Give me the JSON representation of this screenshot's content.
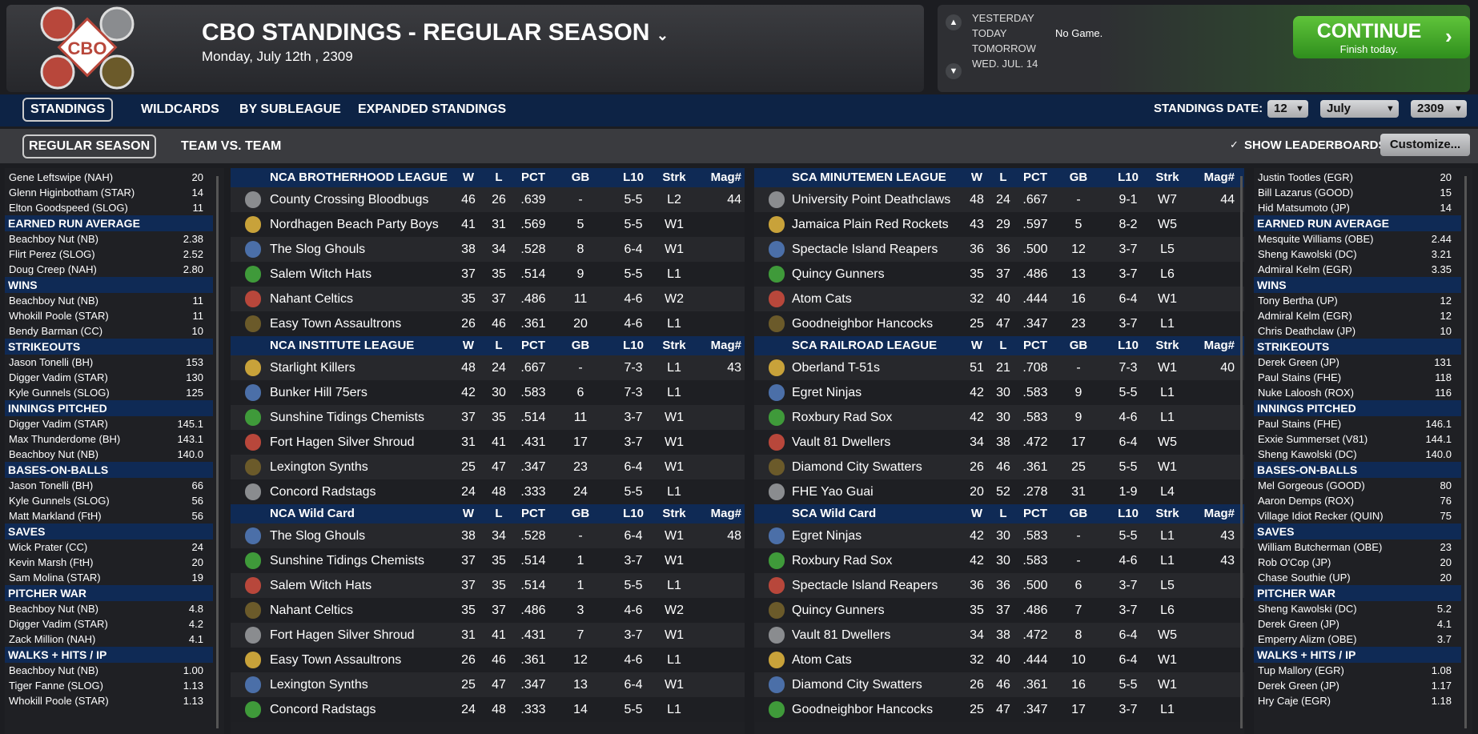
{
  "header": {
    "logo": "CBO",
    "title": "CBO STANDINGS - REGULAR SEASON",
    "date": "Monday, July 12th , 2309"
  },
  "schedule": {
    "days": [
      "YESTERDAY",
      "TODAY",
      "TOMORROW",
      "WED. JUL. 14"
    ],
    "today_result": "No Game."
  },
  "continue": {
    "label": "CONTINUE",
    "sub": "Finish today."
  },
  "tabs": [
    "STANDINGS",
    "WILDCARDS",
    "BY SUBLEAGUE",
    "EXPANDED STANDINGS"
  ],
  "standings_date": {
    "label": "STANDINGS DATE:",
    "day": "12",
    "month": "July",
    "year": "2309"
  },
  "subtabs": [
    "REGULAR SEASON",
    "TEAM VS. TEAM"
  ],
  "show_leaderboards": "SHOW LEADERBOARDS",
  "customize": "Customize...",
  "standings": {
    "columns": [
      "W",
      "L",
      "PCT",
      "GB",
      "L10",
      "Strk",
      "Mag#"
    ],
    "left": [
      {
        "league": "NCA BROTHERHOOD LEAGUE",
        "rows": [
          [
            "County Crossing Bloodbugs",
            46,
            26,
            ".639",
            "-",
            "5-5",
            "L2",
            44
          ],
          [
            "Nordhagen Beach Party Boys",
            41,
            31,
            ".569",
            5,
            "5-5",
            "W1",
            null
          ],
          [
            "The Slog Ghouls",
            38,
            34,
            ".528",
            8,
            "6-4",
            "W1",
            null
          ],
          [
            "Salem Witch Hats",
            37,
            35,
            ".514",
            9,
            "5-5",
            "L1",
            null
          ],
          [
            "Nahant Celtics",
            35,
            37,
            ".486",
            11,
            "4-6",
            "W2",
            null
          ],
          [
            "Easy Town Assaultrons",
            26,
            46,
            ".361",
            20,
            "4-6",
            "L1",
            null
          ]
        ]
      },
      {
        "league": "NCA INSTITUTE LEAGUE",
        "rows": [
          [
            "Starlight Killers",
            48,
            24,
            ".667",
            "-",
            "7-3",
            "L1",
            43
          ],
          [
            "Bunker Hill 75ers",
            42,
            30,
            ".583",
            6,
            "7-3",
            "L1",
            null
          ],
          [
            "Sunshine Tidings Chemists",
            37,
            35,
            ".514",
            11,
            "3-7",
            "W1",
            null
          ],
          [
            "Fort Hagen Silver Shroud",
            31,
            41,
            ".431",
            17,
            "3-7",
            "W1",
            null
          ],
          [
            "Lexington Synths",
            25,
            47,
            ".347",
            23,
            "6-4",
            "W1",
            null
          ],
          [
            "Concord Radstags",
            24,
            48,
            ".333",
            24,
            "5-5",
            "L1",
            null
          ]
        ]
      },
      {
        "league": "NCA  Wild Card",
        "rows": [
          [
            "The Slog Ghouls",
            38,
            34,
            ".528",
            "-",
            "6-4",
            "W1",
            48
          ],
          [
            "Sunshine Tidings Chemists",
            37,
            35,
            ".514",
            1,
            "3-7",
            "W1",
            null
          ],
          [
            "Salem Witch Hats",
            37,
            35,
            ".514",
            1,
            "5-5",
            "L1",
            null
          ],
          [
            "Nahant Celtics",
            35,
            37,
            ".486",
            3,
            "4-6",
            "W2",
            null
          ],
          [
            "Fort Hagen Silver Shroud",
            31,
            41,
            ".431",
            7,
            "3-7",
            "W1",
            null
          ],
          [
            "Easy Town Assaultrons",
            26,
            46,
            ".361",
            12,
            "4-6",
            "L1",
            null
          ],
          [
            "Lexington Synths",
            25,
            47,
            ".347",
            13,
            "6-4",
            "W1",
            null
          ],
          [
            "Concord Radstags",
            24,
            48,
            ".333",
            14,
            "5-5",
            "L1",
            null
          ]
        ]
      }
    ],
    "right": [
      {
        "league": "SCA MINUTEMEN LEAGUE",
        "rows": [
          [
            "University Point Deathclaws",
            48,
            24,
            ".667",
            "-",
            "9-1",
            "W7",
            44
          ],
          [
            "Jamaica Plain Red Rockets",
            43,
            29,
            ".597",
            5,
            "8-2",
            "W5",
            null
          ],
          [
            "Spectacle Island Reapers",
            36,
            36,
            ".500",
            12,
            "3-7",
            "L5",
            null
          ],
          [
            "Quincy Gunners",
            35,
            37,
            ".486",
            13,
            "3-7",
            "L6",
            null
          ],
          [
            "Atom Cats",
            32,
            40,
            ".444",
            16,
            "6-4",
            "W1",
            null
          ],
          [
            "Goodneighbor Hancocks",
            25,
            47,
            ".347",
            23,
            "3-7",
            "L1",
            null
          ]
        ]
      },
      {
        "league": "SCA RAILROAD LEAGUE",
        "rows": [
          [
            "Oberland T-51s",
            51,
            21,
            ".708",
            "-",
            "7-3",
            "W1",
            40
          ],
          [
            "Egret Ninjas",
            42,
            30,
            ".583",
            9,
            "5-5",
            "L1",
            null
          ],
          [
            "Roxbury Rad Sox",
            42,
            30,
            ".583",
            9,
            "4-6",
            "L1",
            null
          ],
          [
            "Vault 81 Dwellers",
            34,
            38,
            ".472",
            17,
            "6-4",
            "W5",
            null
          ],
          [
            "Diamond City Swatters",
            26,
            46,
            ".361",
            25,
            "5-5",
            "W1",
            null
          ],
          [
            "FHE Yao Guai",
            20,
            52,
            ".278",
            31,
            "1-9",
            "L4",
            null
          ]
        ]
      },
      {
        "league": "SCA  Wild Card",
        "rows": [
          [
            "Egret Ninjas",
            42,
            30,
            ".583",
            "-",
            "5-5",
            "L1",
            43
          ],
          [
            "Roxbury Rad Sox",
            42,
            30,
            ".583",
            "-",
            "4-6",
            "L1",
            43
          ],
          [
            "Spectacle Island Reapers",
            36,
            36,
            ".500",
            6,
            "3-7",
            "L5",
            null
          ],
          [
            "Quincy Gunners",
            35,
            37,
            ".486",
            7,
            "3-7",
            "L6",
            null
          ],
          [
            "Vault 81 Dwellers",
            34,
            38,
            ".472",
            8,
            "6-4",
            "W5",
            null
          ],
          [
            "Atom Cats",
            32,
            40,
            ".444",
            10,
            "6-4",
            "W1",
            null
          ],
          [
            "Diamond City Swatters",
            26,
            46,
            ".361",
            16,
            "5-5",
            "W1",
            null
          ],
          [
            "Goodneighbor Hancocks",
            25,
            47,
            ".347",
            17,
            "3-7",
            "L1",
            null
          ]
        ]
      }
    ]
  },
  "leaders_left": [
    {
      "rows": [
        [
          "Gene Leftswipe (NAH)",
          "20"
        ],
        [
          "Glenn Higinbotham (STAR)",
          "14"
        ],
        [
          "Elton Goodspeed (SLOG)",
          "11"
        ]
      ]
    },
    {
      "title": "EARNED RUN AVERAGE",
      "rows": [
        [
          "Beachboy Nut (NB)",
          "2.38"
        ],
        [
          "Flirt Perez (SLOG)",
          "2.52"
        ],
        [
          "Doug Creep (NAH)",
          "2.80"
        ]
      ]
    },
    {
      "title": "WINS",
      "rows": [
        [
          "Beachboy Nut (NB)",
          "11"
        ],
        [
          "Whokill Poole (STAR)",
          "11"
        ],
        [
          "Bendy Barman (CC)",
          "10"
        ]
      ]
    },
    {
      "title": "STRIKEOUTS",
      "rows": [
        [
          "Jason Tonelli (BH)",
          "153"
        ],
        [
          "Digger Vadim (STAR)",
          "130"
        ],
        [
          "Kyle Gunnels (SLOG)",
          "125"
        ]
      ]
    },
    {
      "title": "INNINGS PITCHED",
      "rows": [
        [
          "Digger Vadim (STAR)",
          "145.1"
        ],
        [
          "Max Thunderdome (BH)",
          "143.1"
        ],
        [
          "Beachboy Nut (NB)",
          "140.0"
        ]
      ]
    },
    {
      "title": "BASES-ON-BALLS",
      "rows": [
        [
          "Jason Tonelli (BH)",
          "66"
        ],
        [
          "Kyle Gunnels (SLOG)",
          "56"
        ],
        [
          "Matt Markland (FtH)",
          "56"
        ]
      ]
    },
    {
      "title": "SAVES",
      "rows": [
        [
          "Wick Prater (CC)",
          "24"
        ],
        [
          "Kevin Marsh (FtH)",
          "20"
        ],
        [
          "Sam Molina (STAR)",
          "19"
        ]
      ]
    },
    {
      "title": "PITCHER WAR",
      "rows": [
        [
          "Beachboy Nut (NB)",
          "4.8"
        ],
        [
          "Digger Vadim (STAR)",
          "4.2"
        ],
        [
          "Zack Million (NAH)",
          "4.1"
        ]
      ]
    },
    {
      "title": "WALKS + HITS / IP",
      "rows": [
        [
          "Beachboy Nut (NB)",
          "1.00"
        ],
        [
          "Tiger Fanne (SLOG)",
          "1.13"
        ],
        [
          "Whokill Poole (STAR)",
          "1.13"
        ]
      ]
    }
  ],
  "leaders_right": [
    {
      "rows": [
        [
          "Justin Tootles (EGR)",
          "20"
        ],
        [
          "Bill Lazarus (GOOD)",
          "15"
        ],
        [
          "Hid Matsumoto (JP)",
          "14"
        ]
      ]
    },
    {
      "title": "EARNED RUN AVERAGE",
      "rows": [
        [
          "Mesquite Williams (OBE)",
          "2.44"
        ],
        [
          "Sheng Kawolski (DC)",
          "3.21"
        ],
        [
          "Admiral Kelm (EGR)",
          "3.35"
        ]
      ]
    },
    {
      "title": "WINS",
      "rows": [
        [
          "Tony Bertha (UP)",
          "12"
        ],
        [
          "Admiral Kelm (EGR)",
          "12"
        ],
        [
          "Chris Deathclaw (JP)",
          "10"
        ]
      ]
    },
    {
      "title": "STRIKEOUTS",
      "rows": [
        [
          "Derek Green (JP)",
          "131"
        ],
        [
          "Paul Stains (FHE)",
          "118"
        ],
        [
          "Nuke Laloosh (ROX)",
          "116"
        ]
      ]
    },
    {
      "title": "INNINGS PITCHED",
      "rows": [
        [
          "Paul Stains (FHE)",
          "146.1"
        ],
        [
          "Exxie Summerset (V81)",
          "144.1"
        ],
        [
          "Sheng Kawolski (DC)",
          "140.0"
        ]
      ]
    },
    {
      "title": "BASES-ON-BALLS",
      "rows": [
        [
          "Mel Gorgeous (GOOD)",
          "80"
        ],
        [
          "Aaron Demps (ROX)",
          "76"
        ],
        [
          "Village Idiot Recker (QUIN)",
          "75"
        ]
      ]
    },
    {
      "title": "SAVES",
      "rows": [
        [
          "William Butcherman (OBE)",
          "23"
        ],
        [
          "Rob O'Cop (JP)",
          "20"
        ],
        [
          "Chase Southie (UP)",
          "20"
        ]
      ]
    },
    {
      "title": "PITCHER WAR",
      "rows": [
        [
          "Sheng Kawolski (DC)",
          "5.2"
        ],
        [
          "Derek Green (JP)",
          "4.1"
        ],
        [
          "Emperry Alizm (OBE)",
          "3.7"
        ]
      ]
    },
    {
      "title": "WALKS + HITS / IP",
      "rows": [
        [
          "Tup Mallory (EGR)",
          "1.08"
        ],
        [
          "Derek Green (JP)",
          "1.17"
        ],
        [
          "Hry Caje (EGR)",
          "1.18"
        ]
      ]
    }
  ]
}
